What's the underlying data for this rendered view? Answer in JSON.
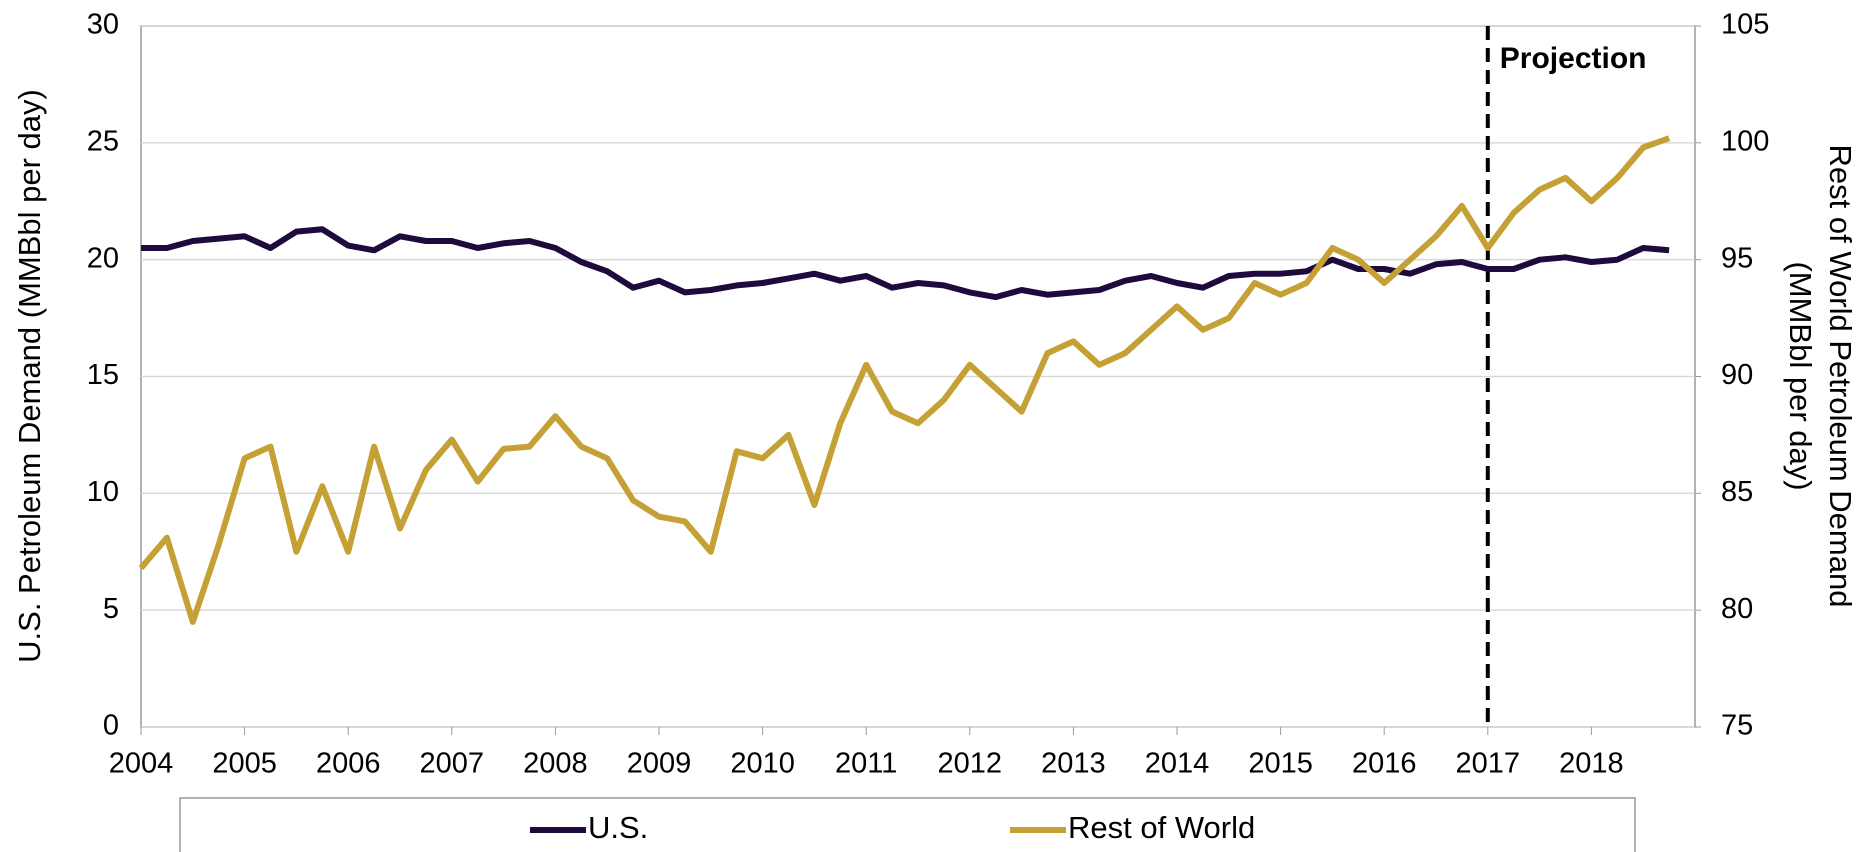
{
  "chart_data": {
    "type": "line",
    "ylabel": "U.S. Petroleum Demand (MMBbl per day)",
    "y2label": [
      "Rest of World Petroleum Demand",
      "(MMBbl per day)"
    ],
    "xlim": [
      2004,
      2019
    ],
    "xticks": [
      2004,
      2005,
      2006,
      2007,
      2008,
      2009,
      2010,
      2011,
      2012,
      2013,
      2014,
      2015,
      2016,
      2017,
      2018
    ],
    "ylim": [
      0,
      30
    ],
    "yticks": [
      0,
      5,
      10,
      15,
      20,
      25,
      30
    ],
    "y2lim": [
      75,
      105
    ],
    "y2ticks": [
      75,
      80,
      85,
      90,
      95,
      100,
      105
    ],
    "grid": true,
    "legend": "bottom",
    "annotations": [
      {
        "text": "Projection",
        "x": 2017
      }
    ],
    "x": [
      2004,
      2004.25,
      2004.5,
      2004.75,
      2005,
      2005.25,
      2005.5,
      2005.75,
      2006,
      2006.25,
      2006.5,
      2006.75,
      2007,
      2007.25,
      2007.5,
      2007.75,
      2008,
      2008.25,
      2008.5,
      2008.75,
      2009,
      2009.25,
      2009.5,
      2009.75,
      2010,
      2010.25,
      2010.5,
      2010.75,
      2011,
      2011.25,
      2011.5,
      2011.75,
      2012,
      2012.25,
      2012.5,
      2012.75,
      2013,
      2013.25,
      2013.5,
      2013.75,
      2014,
      2014.25,
      2014.5,
      2014.75,
      2015,
      2015.25,
      2015.5,
      2015.75,
      2016,
      2016.25,
      2016.5,
      2016.75,
      2017,
      2017.25,
      2017.5,
      2017.75,
      2018,
      2018.25,
      2018.5,
      2018.75
    ],
    "series": [
      {
        "name": "U.S.",
        "color": "#1e0a3c",
        "axis": "y",
        "values": [
          20.5,
          20.5,
          20.8,
          20.9,
          21.0,
          20.5,
          21.2,
          21.3,
          20.6,
          20.4,
          21.0,
          20.8,
          20.8,
          20.5,
          20.7,
          20.8,
          20.5,
          19.9,
          19.5,
          18.8,
          19.1,
          18.6,
          18.7,
          18.9,
          19.0,
          19.2,
          19.4,
          19.1,
          19.3,
          18.8,
          19.0,
          18.9,
          18.6,
          18.4,
          18.7,
          18.5,
          18.6,
          18.7,
          19.1,
          19.3,
          19.0,
          18.8,
          19.3,
          19.4,
          19.4,
          19.5,
          20.0,
          19.6,
          19.6,
          19.4,
          19.8,
          19.9,
          19.6,
          19.6,
          20.0,
          20.1,
          19.9,
          20.0,
          20.5,
          20.4
        ]
      },
      {
        "name": "Rest of World",
        "color": "#c4a035",
        "axis": "y2",
        "values": [
          81.8,
          83.1,
          79.5,
          82.8,
          86.5,
          87.0,
          82.5,
          85.3,
          82.5,
          87.0,
          83.5,
          86.0,
          87.3,
          85.5,
          86.9,
          87.0,
          88.3,
          87.0,
          86.5,
          84.7,
          84.0,
          83.8,
          82.5,
          86.8,
          86.5,
          87.5,
          84.5,
          88.0,
          90.5,
          88.5,
          88.0,
          89.0,
          90.5,
          89.5,
          88.5,
          91.0,
          91.5,
          90.5,
          91.0,
          92.0,
          93.0,
          92.0,
          92.5,
          94.0,
          93.5,
          94.0,
          95.5,
          95.0,
          94.0,
          95.0,
          96.0,
          97.3,
          95.5,
          97.0,
          98.0,
          98.5,
          97.5,
          98.5,
          99.8,
          100.2
        ]
      }
    ]
  }
}
